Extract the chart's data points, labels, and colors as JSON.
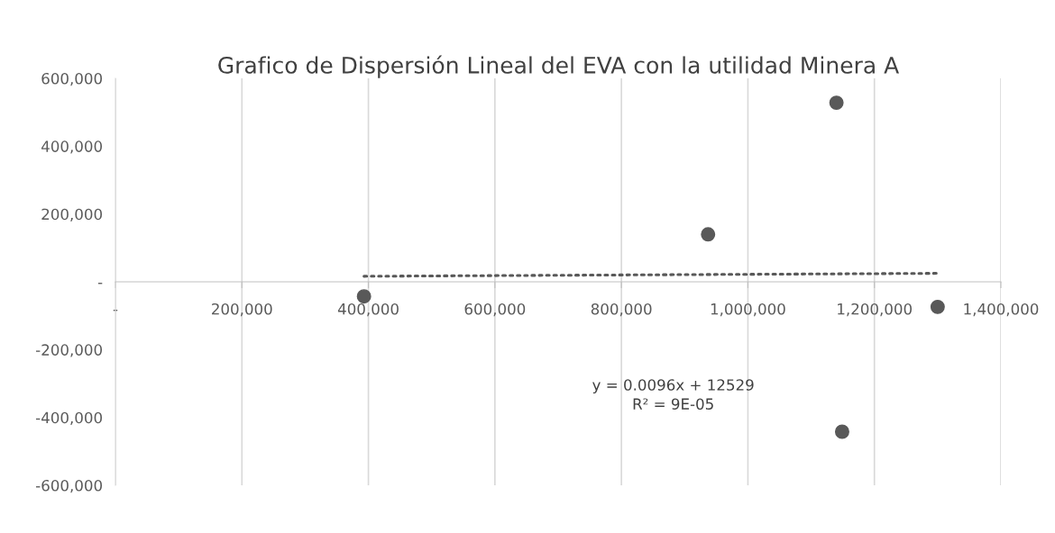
{
  "chart_data": {
    "type": "scatter",
    "title": "Grafico de Dispersión Lineal del EVA con la utilidad Minera A",
    "series": [
      {
        "color": "#595959",
        "marker": "circle",
        "x": [
          393000,
          937000,
          1140000,
          1149000,
          1300000
        ],
        "values": [
          -43000,
          140000,
          528000,
          -442000,
          -74000
        ]
      },
      {
        "type": "line",
        "color": "#595959",
        "marker": "none",
        "line_style": "dotted",
        "x": [
          393000,
          1300000
        ],
        "values": [
          16300,
          25000
        ]
      }
    ],
    "annotations": [
      "y = 0.0096x + 12529\nR² = 9E-05"
    ],
    "xlim": [
      0,
      1400000
    ],
    "ylim": [
      -600000,
      600000
    ],
    "xticks": [
      {
        "value": 0,
        "label": "-"
      },
      {
        "value": 200000,
        "label": "200,000"
      },
      {
        "value": 400000,
        "label": "400,000"
      },
      {
        "value": 600000,
        "label": "600,000"
      },
      {
        "value": 800000,
        "label": "800,000"
      },
      {
        "value": 1000000,
        "label": "1,000,000"
      },
      {
        "value": 1200000,
        "label": "1,200,000"
      },
      {
        "value": 1400000,
        "label": "1,400,000"
      }
    ],
    "yticks": [
      {
        "value": -600000,
        "label": "-600,000"
      },
      {
        "value": -400000,
        "label": "-400,000"
      },
      {
        "value": -200000,
        "label": "-200,000"
      },
      {
        "value": 0,
        "label": "-"
      },
      {
        "value": 200000,
        "label": "200,000"
      },
      {
        "value": 400000,
        "label": "400,000"
      },
      {
        "value": 600000,
        "label": "600,000"
      }
    ],
    "grid": "x"
  }
}
